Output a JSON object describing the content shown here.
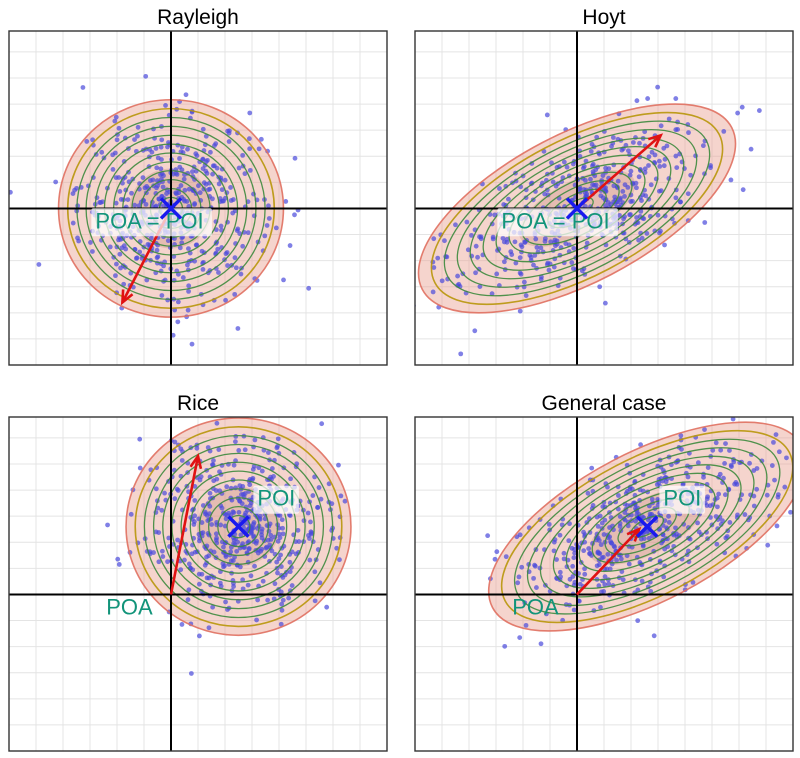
{
  "panels": [
    {
      "title": "Rayleigh",
      "center_x": 0,
      "center_y": 0,
      "sd_x": 0.85,
      "sd_y": 0.85,
      "rho": 0.0,
      "arrow": {
        "from": [
          0,
          0
        ],
        "to": [
          -0.9,
          -1.8
        ]
      },
      "poi_mark": [
        0,
        0
      ],
      "labels": [
        {
          "text": "POA = POI",
          "at": [
            -1.4,
            -0.38
          ],
          "boxed": true
        }
      ]
    },
    {
      "title": "Hoyt",
      "center_x": 0,
      "center_y": 0,
      "sd_x": 1.2,
      "sd_y": 0.8,
      "rho": 0.6,
      "arrow": {
        "from": [
          0,
          0
        ],
        "to": [
          1.55,
          1.4
        ]
      },
      "poi_mark": [
        0,
        0
      ],
      "labels": [
        {
          "text": "POA = POI",
          "at": [
            -1.4,
            -0.38
          ],
          "boxed": true
        }
      ]
    },
    {
      "title": "Rice",
      "center_x": 1.25,
      "center_y": 1.3,
      "sd_x": 0.85,
      "sd_y": 0.85,
      "rho": 0.0,
      "arrow": {
        "from": [
          0,
          0
        ],
        "to": [
          0.5,
          2.65
        ]
      },
      "poi_mark": [
        1.25,
        1.3
      ],
      "labels": [
        {
          "text": "POI",
          "at": [
            1.6,
            1.7
          ],
          "boxed": true
        },
        {
          "text": "POA",
          "at": [
            -1.2,
            -0.38
          ],
          "boxed": false
        }
      ]
    },
    {
      "title": "General case",
      "center_x": 1.3,
      "center_y": 1.3,
      "sd_x": 1.2,
      "sd_y": 0.8,
      "rho": 0.6,
      "arrow": {
        "from": [
          0,
          0
        ],
        "to": [
          1.15,
          1.25
        ]
      },
      "poi_mark": [
        1.3,
        1.3
      ],
      "labels": [
        {
          "text": "POI",
          "at": [
            1.6,
            1.7
          ],
          "boxed": true
        },
        {
          "text": "POA",
          "at": [
            -1.2,
            -0.38
          ],
          "boxed": false
        }
      ]
    }
  ],
  "axis_range": {
    "x": [
      -3,
      4
    ],
    "y": [
      -3,
      3.4
    ]
  },
  "points_per_panel": 500,
  "colors": {
    "points": "#4a4adb",
    "cross": "#1a1aee",
    "arrow": "#e01212",
    "label": "#12947a",
    "ellipse_outer": "#e07060",
    "ellipse_mid": "#b8960a",
    "ellipse_inner": "#3d8a3d",
    "fill": "#e8a090",
    "grid": "#e4e4e4",
    "frame": "#333333"
  }
}
